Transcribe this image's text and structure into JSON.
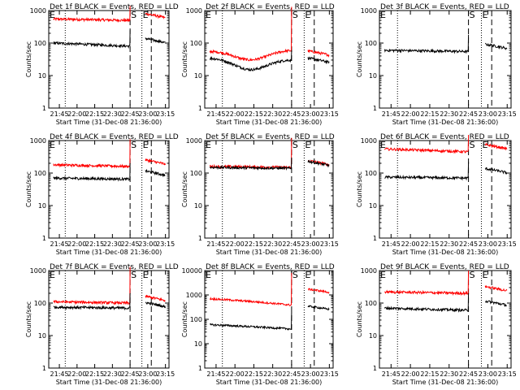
{
  "chart_data": {
    "type": "line",
    "grid": false,
    "xlabel": "Start Time (31-Dec-08 21:36:00)",
    "ylabel": "Counts/sec",
    "y_scale": "log",
    "ylim": [
      1,
      1000
    ],
    "yticks": [
      "1",
      "10",
      "100",
      "1000"
    ],
    "xlim": [
      "21:36",
      "23:18"
    ],
    "xticks": [
      "21:45",
      "22:00",
      "22:15",
      "22:30",
      "22:45",
      "23:00",
      "23:15"
    ],
    "marker_labels": [
      "E",
      "S",
      "E"
    ],
    "dashed_lines": [
      "22:45",
      "23:03"
    ],
    "dotted_lines": [
      "21:50",
      "22:55"
    ],
    "series_colors": {
      "events": "#000000",
      "lld": "#ff0000"
    },
    "panels": [
      {
        "title": "Det 1f BLACK = Events, RED = LLD",
        "ytop": "1000",
        "events": {
          "base": 100,
          "end": 80,
          "spike": 250,
          "after": 120,
          "bump": 0
        },
        "lld": {
          "base": 550,
          "end": 500,
          "spike": 1400,
          "after": 700,
          "bump": 0
        }
      },
      {
        "title": "Det 2f BLACK = Events, RED = LLD",
        "ytop": "1000",
        "events": {
          "base": 25,
          "end": 22,
          "spike": 60,
          "after": 30,
          "bump": 0.35
        },
        "lld": {
          "base": 42,
          "end": 45,
          "spike": 1300,
          "after": 50,
          "bump": 0.3
        }
      },
      {
        "title": "Det 3f BLACK = Events, RED = LLD",
        "ytop": "1000",
        "events": {
          "base": 60,
          "end": 55,
          "spike": 180,
          "after": 80,
          "bump": 0
        },
        "lld": null
      },
      {
        "title": "Det 4f BLACK = Events, RED = LLD",
        "ytop": "1000",
        "events": {
          "base": 70,
          "end": 65,
          "spike": 200,
          "after": 100,
          "bump": 0
        },
        "lld": {
          "base": 180,
          "end": 160,
          "spike": 1100,
          "after": 220,
          "bump": 0
        }
      },
      {
        "title": "Det 5f BLACK = Events, RED = LLD",
        "ytop": "1000",
        "events": {
          "base": 150,
          "end": 140,
          "spike": 300,
          "after": 200,
          "bump": 0
        },
        "lld": {
          "base": 160,
          "end": 150,
          "spike": 1200,
          "after": 210,
          "bump": 0
        }
      },
      {
        "title": "Det 6f BLACK = Events, RED = LLD",
        "ytop": "1000",
        "events": {
          "base": 75,
          "end": 70,
          "spike": 220,
          "after": 120,
          "bump": 0
        },
        "lld": {
          "base": 550,
          "end": 450,
          "spike": 1500,
          "after": 650,
          "bump": 0
        }
      },
      {
        "title": "Det 7f BLACK = Events, RED = LLD",
        "ytop": "1000",
        "events": {
          "base": 75,
          "end": 70,
          "spike": 200,
          "after": 90,
          "bump": 0
        },
        "lld": {
          "base": 110,
          "end": 100,
          "spike": 1300,
          "after": 140,
          "bump": 0
        }
      },
      {
        "title": "Det 8f BLACK = Events, RED = LLD",
        "ytop": "10000",
        "events": {
          "base": 60,
          "end": 40,
          "spike": 200,
          "after": 300,
          "bump": 0
        },
        "lld": {
          "base": 700,
          "end": 380,
          "spike": 8000,
          "after": 1500,
          "bump": 0
        }
      },
      {
        "title": "Det 9f BLACK = Events, RED = LLD",
        "ytop": "1000",
        "events": {
          "base": 70,
          "end": 60,
          "spike": 200,
          "after": 100,
          "bump": 0
        },
        "lld": {
          "base": 220,
          "end": 200,
          "spike": 1000,
          "after": 280,
          "bump": 0
        }
      }
    ]
  }
}
